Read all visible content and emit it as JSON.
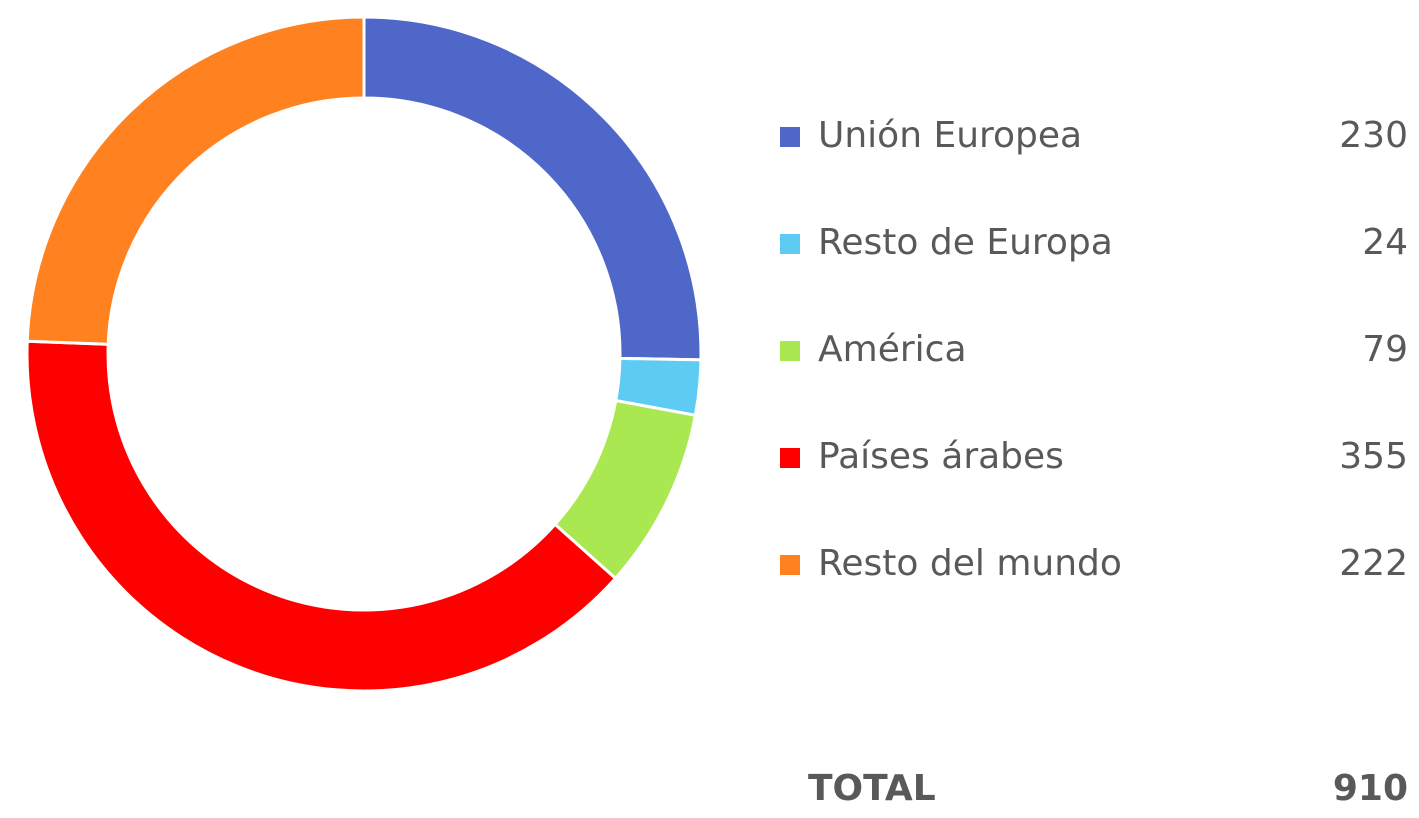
{
  "chart_data": {
    "type": "donut",
    "categories": [
      "Unión Europea",
      "Resto de Europa",
      "América",
      "Países árabes",
      "Resto del mundo"
    ],
    "values": [
      230,
      24,
      79,
      355,
      222
    ],
    "colors": [
      "#4f67c9",
      "#5ecbf2",
      "#a9e851",
      "#ff0000",
      "#ff8120"
    ],
    "total_label": "TOTAL",
    "total": 910
  }
}
